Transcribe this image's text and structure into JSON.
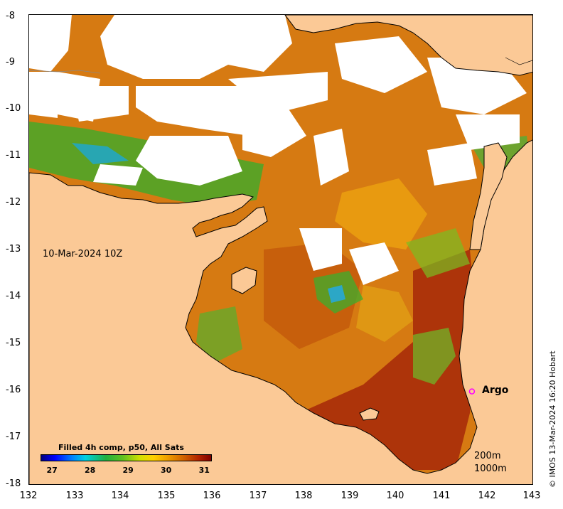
{
  "map": {
    "y_ticks": [
      "-8",
      "-9",
      "-10",
      "-11",
      "-12",
      "-13",
      "-14",
      "-15",
      "-16",
      "-17",
      "-18"
    ],
    "x_ticks": [
      "132",
      "133",
      "134",
      "135",
      "136",
      "137",
      "138",
      "139",
      "140",
      "141",
      "142",
      "143"
    ],
    "lat_range": [
      -18,
      -8
    ],
    "lon_range": [
      132,
      143
    ],
    "date_label": "10-Mar-2024 10Z",
    "argo_label": "Argo",
    "argo_position": {
      "lon": 141.65,
      "lat": -16.0
    },
    "isobath_200": "200m",
    "isobath_1000": "1000m",
    "credit": "© IMOS 13-Mar-2024 16:20 Hobart",
    "land_color": "#fbc996",
    "argo_color": "#ff00ff"
  },
  "legend": {
    "title": "Filled 4h comp, p50, All Sats",
    "ticks": [
      "27",
      "28",
      "29",
      "30",
      "31"
    ],
    "min": 26.7,
    "max": 31.2,
    "tick_values": [
      27,
      28,
      29,
      30,
      31
    ]
  }
}
